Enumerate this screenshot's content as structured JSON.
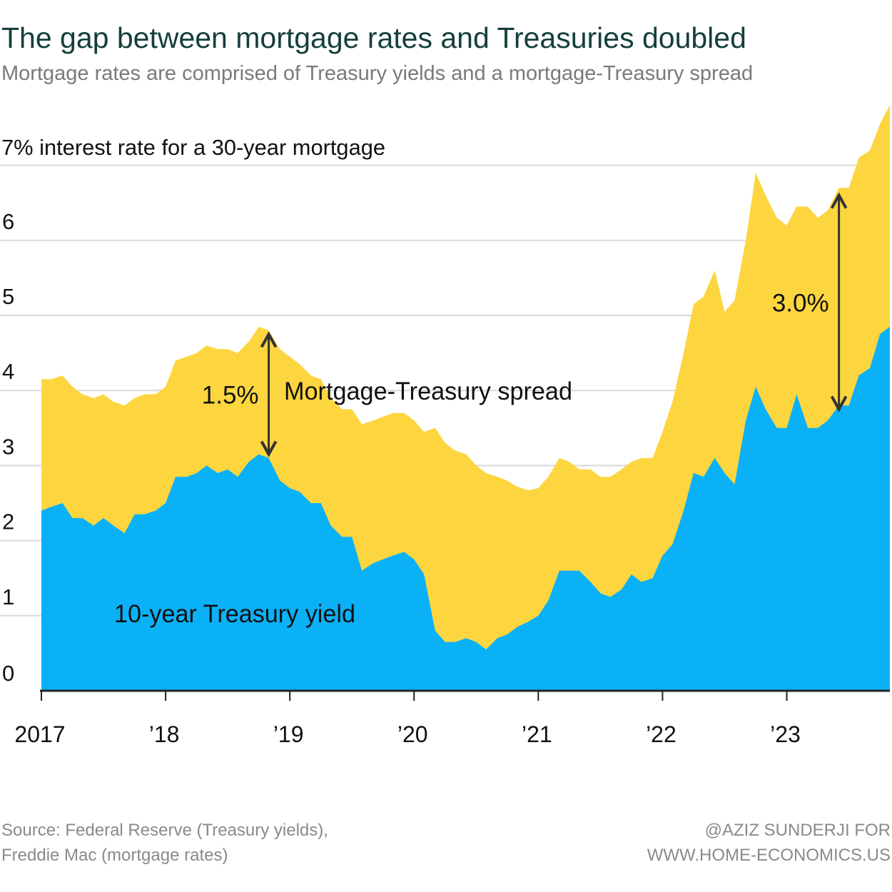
{
  "chart_data": {
    "type": "area",
    "title": "The gap between mortgage rates and Treasuries doubled",
    "subtitle": "Mortgage rates are comprised of Treasury yields and a mortgage-Treasury spread",
    "ylabel": "7% interest rate for a 30-year mortgage",
    "ylim": [
      0,
      7.8
    ],
    "yticks": [
      {
        "value": 0,
        "label": "0"
      },
      {
        "value": 1,
        "label": "1"
      },
      {
        "value": 2,
        "label": "2"
      },
      {
        "value": 3,
        "label": "3"
      },
      {
        "value": 4,
        "label": "4"
      },
      {
        "value": 5,
        "label": "5"
      },
      {
        "value": 6,
        "label": "6"
      }
    ],
    "xlim": [
      2017.0,
      2023.83
    ],
    "xticks": [
      {
        "value": 2017,
        "label": "2017"
      },
      {
        "value": 2018,
        "label": "’18"
      },
      {
        "value": 2019,
        "label": "’19"
      },
      {
        "value": 2020,
        "label": "’20"
      },
      {
        "value": 2021,
        "label": "’21"
      },
      {
        "value": 2022,
        "label": "’22"
      },
      {
        "value": 2023,
        "label": "’23"
      }
    ],
    "x": [
      2017.0,
      2017.08,
      2017.17,
      2017.25,
      2017.33,
      2017.42,
      2017.5,
      2017.58,
      2017.67,
      2017.75,
      2017.83,
      2017.92,
      2018.0,
      2018.08,
      2018.17,
      2018.25,
      2018.33,
      2018.42,
      2018.5,
      2018.58,
      2018.67,
      2018.75,
      2018.83,
      2018.92,
      2019.0,
      2019.08,
      2019.17,
      2019.25,
      2019.33,
      2019.42,
      2019.5,
      2019.58,
      2019.67,
      2019.75,
      2019.83,
      2019.92,
      2020.0,
      2020.08,
      2020.17,
      2020.25,
      2020.33,
      2020.42,
      2020.5,
      2020.58,
      2020.67,
      2020.75,
      2020.83,
      2020.92,
      2021.0,
      2021.08,
      2021.17,
      2021.25,
      2021.33,
      2021.42,
      2021.5,
      2021.58,
      2021.67,
      2021.75,
      2021.83,
      2021.92,
      2022.0,
      2022.08,
      2022.17,
      2022.25,
      2022.33,
      2022.42,
      2022.5,
      2022.58,
      2022.67,
      2022.75,
      2022.83,
      2022.92,
      2023.0,
      2023.08,
      2023.17,
      2023.25,
      2023.33,
      2023.42,
      2023.5,
      2023.58,
      2023.67,
      2023.75,
      2023.83
    ],
    "series": [
      {
        "name": "10-year Treasury yield",
        "color": "#0bb1f7",
        "values": [
          2.4,
          2.45,
          2.5,
          2.3,
          2.3,
          2.2,
          2.3,
          2.2,
          2.1,
          2.35,
          2.35,
          2.4,
          2.5,
          2.85,
          2.85,
          2.9,
          3.0,
          2.9,
          2.95,
          2.85,
          3.05,
          3.15,
          3.1,
          2.8,
          2.7,
          2.65,
          2.5,
          2.5,
          2.2,
          2.05,
          2.05,
          1.6,
          1.7,
          1.75,
          1.8,
          1.85,
          1.75,
          1.55,
          0.8,
          0.65,
          0.65,
          0.7,
          0.65,
          0.55,
          0.7,
          0.75,
          0.85,
          0.92,
          1.0,
          1.2,
          1.6,
          1.6,
          1.6,
          1.45,
          1.3,
          1.25,
          1.35,
          1.55,
          1.45,
          1.5,
          1.8,
          1.95,
          2.4,
          2.9,
          2.85,
          3.1,
          2.9,
          2.75,
          3.6,
          4.05,
          3.75,
          3.5,
          3.5,
          3.95,
          3.5,
          3.5,
          3.6,
          3.8,
          3.8,
          4.2,
          4.3,
          4.75,
          4.85
        ]
      },
      {
        "name": "Mortgage rate",
        "color": "#fdd53f",
        "values": [
          4.15,
          4.15,
          4.2,
          4.05,
          3.95,
          3.9,
          3.95,
          3.85,
          3.8,
          3.9,
          3.95,
          3.95,
          4.05,
          4.4,
          4.45,
          4.5,
          4.6,
          4.55,
          4.55,
          4.5,
          4.65,
          4.85,
          4.8,
          4.55,
          4.45,
          4.35,
          4.2,
          4.15,
          3.9,
          3.75,
          3.75,
          3.55,
          3.6,
          3.65,
          3.7,
          3.7,
          3.6,
          3.45,
          3.5,
          3.3,
          3.2,
          3.15,
          3.0,
          2.9,
          2.85,
          2.8,
          2.72,
          2.67,
          2.7,
          2.85,
          3.1,
          3.05,
          2.95,
          2.95,
          2.85,
          2.85,
          2.95,
          3.05,
          3.1,
          3.1,
          3.45,
          3.85,
          4.5,
          5.15,
          5.25,
          5.6,
          5.05,
          5.2,
          6.0,
          6.9,
          6.6,
          6.3,
          6.2,
          6.45,
          6.45,
          6.3,
          6.4,
          6.7,
          6.7,
          7.1,
          7.2,
          7.55,
          7.8
        ]
      }
    ],
    "annotations": [
      {
        "text": "1.5%",
        "x": 2018.83,
        "from": 3.15,
        "to": 4.75
      },
      {
        "text": "3.0%",
        "x": 2023.42,
        "from": 3.75,
        "to": 6.6
      }
    ],
    "series_labels": {
      "spread": "Mortgage-Treasury spread",
      "treasury": "10-year Treasury yield"
    },
    "grid": true,
    "legend": "none"
  },
  "footer": {
    "source_line1": "Source: Federal Reserve (Treasury yields),",
    "source_line2": "Freddie Mac (mortgage rates)",
    "credit_line1": "@AZIZ SUNDERJI FOR",
    "credit_line2": "WWW.HOME-ECONOMICS.US"
  }
}
